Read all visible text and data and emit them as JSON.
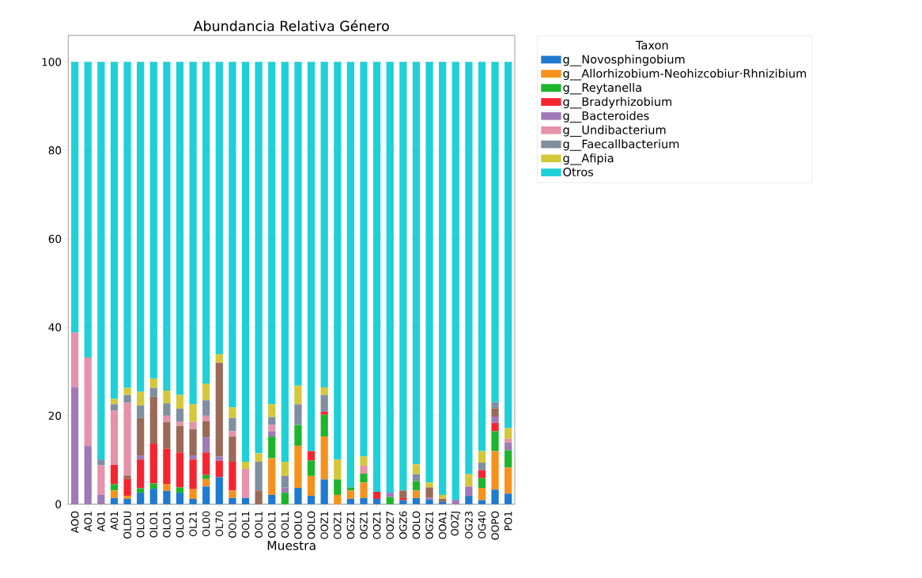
{
  "chart_data": {
    "type": "bar",
    "title": "Abundancia Relativa Género",
    "xlabel": "Muestra",
    "legend_title": "Taxon",
    "categories": [
      "AOO",
      "AO1",
      "AO1",
      "A01",
      "OLDU",
      "OLO1",
      "OLO1",
      "OLO1",
      "OLO1",
      "OL21",
      "OL00",
      "OL70",
      "OOL1",
      "OOL1",
      "OOL1",
      "OOL1",
      "OOL1",
      "OOLO",
      "OOLO",
      "OOZ1",
      "OOZ1",
      "OGZ1",
      "OGZ1",
      "OOZ1",
      "OOZ7",
      "OGZ6",
      "OOLO",
      "OGZ1",
      "OOA1",
      "OOZJ",
      "OG23",
      "OG40",
      "OOPO",
      "PO1"
    ],
    "stacked": true,
    "ylim": [
      0,
      106
    ],
    "yticks": [
      0,
      20,
      40,
      60,
      80,
      100
    ],
    "grid": "y",
    "legend": "right",
    "series": [
      {
        "name": "g__Novosphingobium",
        "color": "#1f7ad0",
        "values": [
          0,
          0,
          0,
          1.4,
          1.2,
          2.6,
          3.5,
          3.0,
          2.6,
          1.2,
          4.0,
          6.1,
          1.4,
          1.4,
          0,
          2.1,
          0,
          3.7,
          1.9,
          5.6,
          0,
          1.2,
          1.4,
          1.2,
          0,
          0.9,
          1.4,
          1.0,
          0.5,
          0,
          1.9,
          0.9,
          3.3,
          2.4
        ]
      },
      {
        "name": "g__Allorhizobium-Neohizcobiur·Rhnizibium",
        "color": "#f5921e",
        "values": [
          0,
          0,
          0,
          1.7,
          0.7,
          0,
          0,
          1.5,
          0,
          2.2,
          1.7,
          0,
          1.7,
          0,
          0,
          8.3,
          0,
          9.5,
          4.5,
          9.7,
          2.1,
          1.9,
          3.5,
          0,
          0,
          0,
          1.7,
          0,
          0,
          0,
          0,
          2.8,
          8.7,
          5.9
        ]
      },
      {
        "name": "g__Reytanella",
        "color": "#1db52c",
        "values": [
          0,
          0,
          0,
          1.4,
          0,
          1.0,
          1.2,
          0,
          1.2,
          0,
          0.9,
          0,
          0,
          0,
          0,
          4.9,
          2.6,
          4.7,
          3.5,
          4.9,
          3.5,
          0.7,
          2.0,
          0,
          1.6,
          0,
          2.1,
          0,
          0,
          0,
          0,
          2.2,
          4.5,
          3.9
        ]
      },
      {
        "name": "g__Bradyrhizobium",
        "color": "#f52530",
        "values": [
          0,
          0,
          0,
          4.4,
          3.8,
          6.5,
          9.0,
          8.0,
          7.9,
          6.7,
          5.1,
          3.7,
          6.5,
          0,
          0,
          0,
          0,
          0,
          2.1,
          0.7,
          0,
          0,
          0,
          1.6,
          0,
          0.5,
          0,
          0,
          0,
          0,
          0,
          1.8,
          1.9,
          0
        ]
      },
      {
        "name": "g__Bacteroides",
        "color": "#a07ab8",
        "values": [
          26.5,
          13.2,
          2.1,
          0,
          0,
          0.9,
          0,
          0,
          0,
          0.9,
          3.4,
          1.0,
          0,
          0,
          0,
          1.2,
          1.2,
          0,
          0,
          0,
          0,
          0,
          0,
          0,
          1.0,
          0,
          0,
          0.5,
          0,
          1.0,
          2.1,
          0,
          1.4,
          1.7
        ]
      },
      {
        "color": "#9a6a58",
        "values": [
          0,
          0,
          0,
          0,
          0.8,
          8.5,
          10.6,
          6.1,
          6.0,
          6.0,
          3.7,
          21.2,
          5.7,
          0,
          3.1,
          0,
          0,
          0,
          0,
          0,
          0,
          0,
          0,
          0,
          0,
          1.7,
          0,
          2.3,
          0.7,
          0,
          0,
          0,
          1.9,
          0
        ]
      },
      {
        "name": "g__Undibacterium",
        "color": "#e592aa",
        "values": [
          12.3,
          20.0,
          6.7,
          12.3,
          16.4,
          0,
          0,
          1.4,
          0.9,
          1.6,
          1.2,
          0,
          1.2,
          6.6,
          0,
          1.4,
          0,
          0,
          0,
          0,
          0,
          0,
          1.8,
          0,
          0,
          0,
          0,
          0,
          0,
          0,
          0,
          0,
          0,
          0.9
        ]
      },
      {
        "name": "g__Faecallbacterium",
        "color": "#7f8fa0",
        "values": [
          0,
          0,
          1.3,
          1.4,
          1.8,
          2.8,
          2.0,
          2.8,
          3.0,
          0,
          3.5,
          0,
          3.0,
          0,
          6.5,
          1.8,
          2.6,
          4.7,
          0,
          3.8,
          0,
          0,
          0,
          0,
          0,
          0,
          1.6,
          0,
          0,
          0,
          0,
          1.7,
          1.4,
          0
        ]
      },
      {
        "name": "g__Afipia",
        "color": "#d4c83a",
        "values": [
          0,
          0,
          0,
          1.2,
          1.6,
          3.1,
          2.1,
          2.9,
          3.1,
          4.0,
          3.8,
          1.9,
          2.4,
          1.6,
          1.9,
          2.9,
          3.2,
          4.2,
          0,
          1.7,
          4.5,
          0,
          2.1,
          0,
          0,
          0,
          2.2,
          1.1,
          0.9,
          0,
          2.8,
          2.6,
          0,
          2.4
        ]
      },
      {
        "name": "Otros",
        "color": "#1fd0d8",
        "values": [
          61.2,
          66.8,
          89.9,
          76.2,
          73.7,
          74.6,
          71.6,
          74.3,
          75.3,
          77.4,
          72.7,
          66.1,
          78.1,
          90.4,
          88.5,
          77.4,
          90.4,
          73.2,
          88,
          73.6,
          89.9,
          96.2,
          89.2,
          97.2,
          97.4,
          96.9,
          91,
          95.1,
          97.9,
          99,
          93.2,
          88,
          76.9,
          82.8
        ]
      }
    ]
  }
}
